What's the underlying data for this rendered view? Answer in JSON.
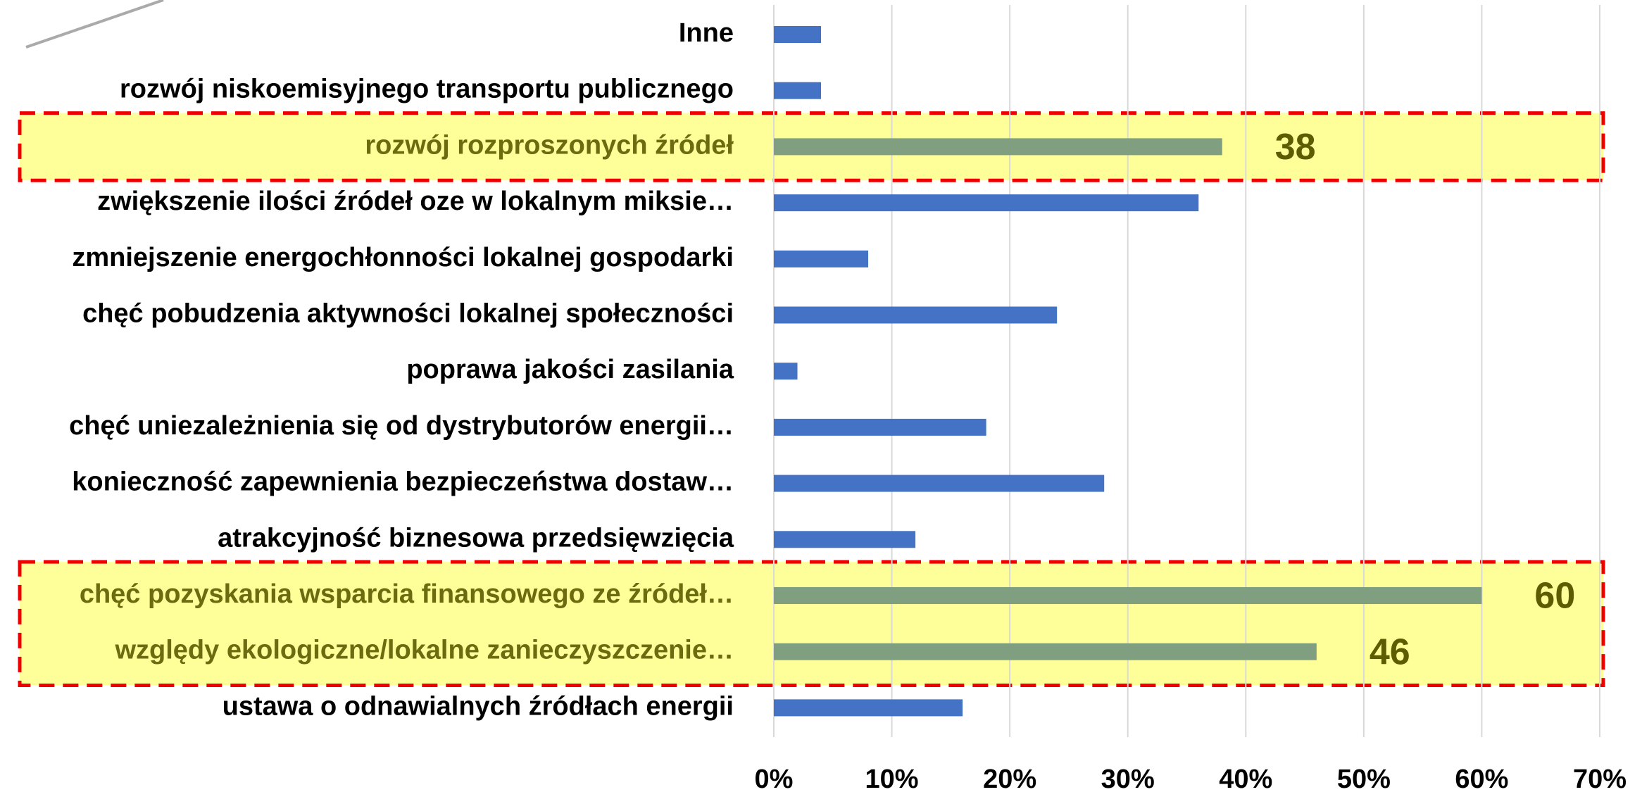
{
  "chart_data": {
    "type": "barh",
    "categories": [
      "Inne",
      "rozwój niskoemisyjnego transportu publicznego",
      "rozwój rozproszonych źródeł",
      "zwiększenie ilości źródeł oze w lokalnym miksie…",
      "zmniejszenie energochłonności lokalnej gospodarki",
      "chęć pobudzenia aktywności lokalnej społeczności",
      "poprawa jakości zasilania",
      "chęć uniezależnienia się od dystrybutorów energii…",
      "konieczność zapewnienia bezpieczeństwa dostaw…",
      "atrakcyjność biznesowa przedsięwzięcia",
      "chęć pozyskania wsparcia finansowego ze źródeł…",
      "względy ekologiczne/lokalne zanieczyszczenie…",
      "ustawa o odnawialnych źródłach energii"
    ],
    "values": [
      4,
      4,
      38,
      36,
      8,
      24,
      2,
      18,
      28,
      12,
      60,
      46,
      16
    ],
    "colors": [
      "#4472c4",
      "#4472c4",
      "#7f9f80",
      "#4472c4",
      "#4472c4",
      "#4472c4",
      "#4472c4",
      "#4472c4",
      "#4472c4",
      "#4472c4",
      "#7f9f80",
      "#7f9f80",
      "#4472c4"
    ],
    "highlight_color": "#7f9f80",
    "xlim": [
      0,
      70
    ],
    "xticks": [
      {
        "value": 0,
        "label": "0%"
      },
      {
        "value": 10,
        "label": "10%"
      },
      {
        "value": 20,
        "label": "20%"
      },
      {
        "value": 30,
        "label": "30%"
      },
      {
        "value": 40,
        "label": "40%"
      },
      {
        "value": 50,
        "label": "50%"
      },
      {
        "value": 60,
        "label": "60%"
      },
      {
        "value": 70,
        "label": "70%"
      }
    ],
    "grid": true
  }
}
